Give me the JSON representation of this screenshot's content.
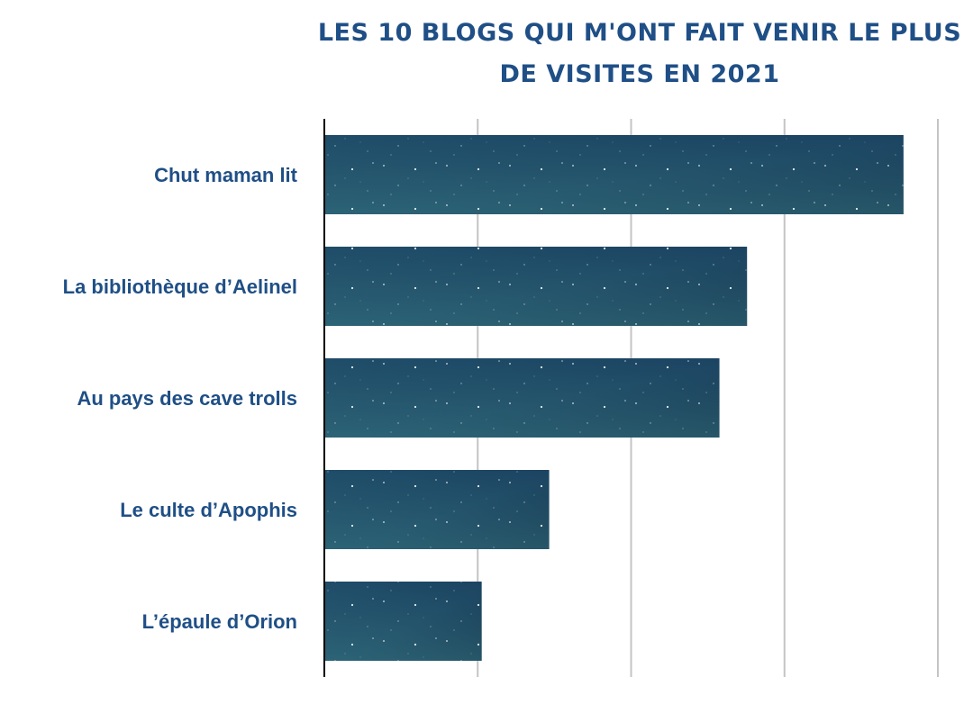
{
  "chart_data": {
    "type": "bar",
    "orientation": "horizontal",
    "title": "Les 10 blogs qui m'ont fait venir le plus de visites en 2021",
    "categories": [
      "Chut maman lit",
      "La bibliothèque d’Aelinel",
      "Au pays des cave trolls",
      "Le culte d’Apophis",
      "L’épaule d’Orion"
    ],
    "values": [
      3.77,
      2.75,
      2.57,
      1.46,
      1.02
    ],
    "xlim": [
      0,
      4
    ],
    "x_gridlines": [
      1,
      2,
      3,
      4
    ],
    "grid": true,
    "legend": "none",
    "colors": {
      "bar_dark": "#0f2744",
      "bar_mid": "#1d4a66",
      "bar_light": "#2f6f7d",
      "grid": "#c4c4c4",
      "axis": "#000000",
      "label": "#1f4f86",
      "title": "#1f4f86"
    }
  }
}
